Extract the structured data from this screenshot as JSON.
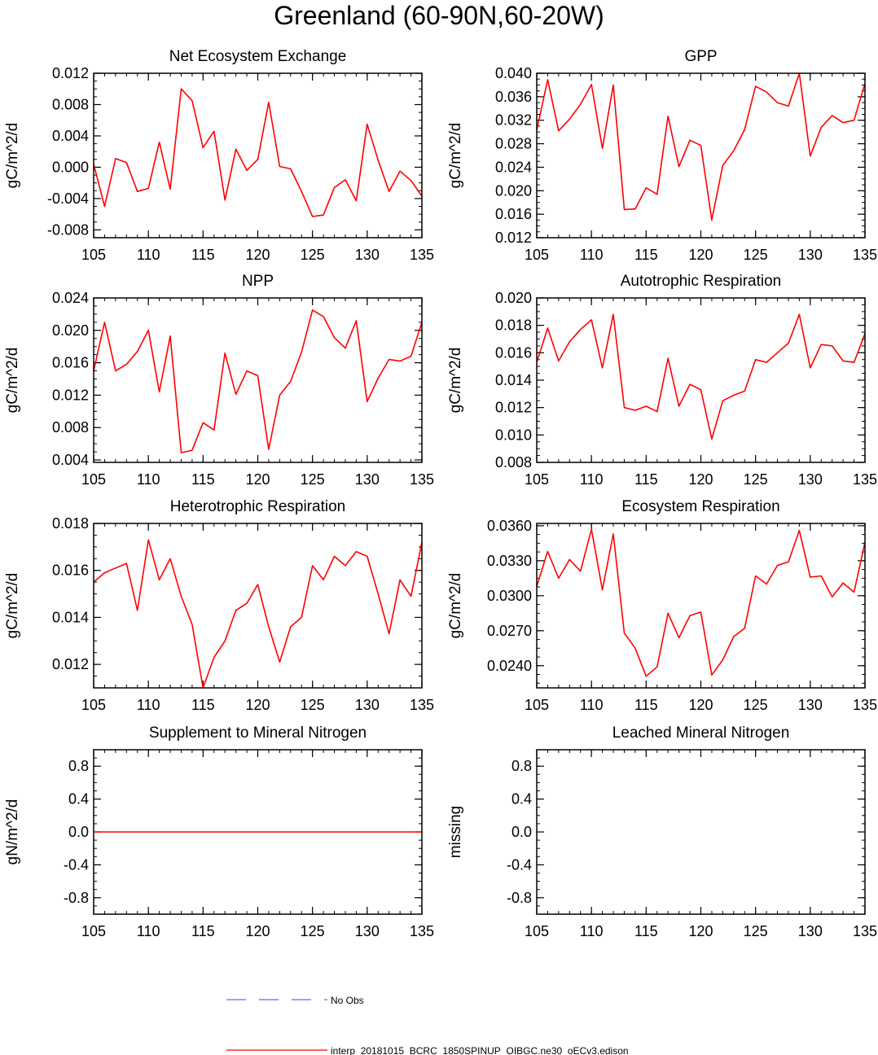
{
  "title": "Greenland (60-90N,60-20W)",
  "colors": {
    "model_line": "#ff0000",
    "obs_line": "#6666ff",
    "axis": "#000000"
  },
  "legend": {
    "items": [
      {
        "label": "No Obs",
        "style": "dashed",
        "color": "#6666ff"
      },
      {
        "label": "interp_20181015_BCRC_1850SPINUP_OIBGC.ne30_oECv3.edison",
        "style": "solid",
        "color": "#ff0000"
      }
    ]
  },
  "chart_data": [
    {
      "type": "line",
      "title": "Net Ecosystem Exchange",
      "ylabel": "gC/m^2/d",
      "xlim": [
        105,
        135
      ],
      "ylim": [
        -0.009,
        0.012
      ],
      "xticks": [
        "105",
        "110",
        "115",
        "120",
        "125",
        "130",
        "135"
      ],
      "yticks": [
        "-0.008",
        "-0.004",
        "0.000",
        "0.004",
        "0.008",
        "0.012"
      ],
      "x": [
        105,
        106,
        107,
        108,
        109,
        110,
        111,
        112,
        113,
        114,
        115,
        116,
        117,
        118,
        119,
        120,
        121,
        122,
        123,
        124,
        125,
        126,
        127,
        128,
        129,
        130,
        131,
        132,
        133,
        134,
        135
      ],
      "series": [
        {
          "values": [
            0.0004,
            -0.005,
            0.0011,
            0.0006,
            -0.0031,
            -0.0027,
            0.0032,
            -0.0028,
            0.01,
            0.0085,
            0.0025,
            0.0046,
            -0.0042,
            0.0023,
            -0.0004,
            0.001,
            0.0083,
            0.0001,
            -0.0002,
            -0.0031,
            -0.0063,
            -0.0061,
            -0.0026,
            -0.0016,
            -0.0043,
            0.0055,
            0.0009,
            -0.0031,
            -0.0005,
            -0.0017,
            -0.0037
          ]
        }
      ]
    },
    {
      "type": "line",
      "title": "GPP",
      "ylabel": "gC/m^2/d",
      "xlim": [
        105,
        135
      ],
      "ylim": [
        0.012,
        0.04
      ],
      "xticks": [
        "105",
        "110",
        "115",
        "120",
        "125",
        "130",
        "135"
      ],
      "yticks": [
        "0.012",
        "0.016",
        "0.020",
        "0.024",
        "0.028",
        "0.032",
        "0.036",
        "0.040"
      ],
      "x": [
        105,
        106,
        107,
        108,
        109,
        110,
        111,
        112,
        113,
        114,
        115,
        116,
        117,
        118,
        119,
        120,
        121,
        122,
        123,
        124,
        125,
        126,
        127,
        128,
        129,
        130,
        131,
        132,
        133,
        134,
        135
      ],
      "series": [
        {
          "values": [
            0.0303,
            0.0389,
            0.0302,
            0.0322,
            0.0347,
            0.0381,
            0.0272,
            0.038,
            0.0168,
            0.0169,
            0.0205,
            0.0194,
            0.0327,
            0.0241,
            0.0286,
            0.0277,
            0.015,
            0.0243,
            0.0268,
            0.0304,
            0.0378,
            0.0368,
            0.035,
            0.0344,
            0.04,
            0.0259,
            0.0308,
            0.0328,
            0.0316,
            0.032,
            0.0383
          ]
        }
      ]
    },
    {
      "type": "line",
      "title": "NPP",
      "ylabel": "gC/m^2/d",
      "xlim": [
        105,
        135
      ],
      "ylim": [
        0.0037,
        0.024
      ],
      "xticks": [
        "105",
        "110",
        "115",
        "120",
        "125",
        "130",
        "135"
      ],
      "yticks": [
        "0.004",
        "0.008",
        "0.012",
        "0.016",
        "0.020",
        "0.024"
      ],
      "x": [
        105,
        106,
        107,
        108,
        109,
        110,
        111,
        112,
        113,
        114,
        115,
        116,
        117,
        118,
        119,
        120,
        121,
        122,
        123,
        124,
        125,
        126,
        127,
        128,
        129,
        130,
        131,
        132,
        133,
        134,
        135
      ],
      "series": [
        {
          "values": [
            0.015,
            0.021,
            0.015,
            0.0158,
            0.0174,
            0.02,
            0.0124,
            0.0193,
            0.0049,
            0.0052,
            0.0086,
            0.0077,
            0.0172,
            0.0121,
            0.015,
            0.0144,
            0.0053,
            0.012,
            0.0137,
            0.0173,
            0.0225,
            0.0217,
            0.0191,
            0.0178,
            0.0212,
            0.0112,
            0.0141,
            0.0164,
            0.0162,
            0.0168,
            0.021
          ]
        }
      ]
    },
    {
      "type": "line",
      "title": "Autotrophic Respiration",
      "ylabel": "gC/m^2/d",
      "xlim": [
        105,
        135
      ],
      "ylim": [
        0.008,
        0.02
      ],
      "xticks": [
        "105",
        "110",
        "115",
        "120",
        "125",
        "130",
        "135"
      ],
      "yticks": [
        "0.008",
        "0.010",
        "0.012",
        "0.014",
        "0.016",
        "0.018",
        "0.020"
      ],
      "x": [
        105,
        106,
        107,
        108,
        109,
        110,
        111,
        112,
        113,
        114,
        115,
        116,
        117,
        118,
        119,
        120,
        121,
        122,
        123,
        124,
        125,
        126,
        127,
        128,
        129,
        130,
        131,
        132,
        133,
        134,
        135
      ],
      "series": [
        {
          "values": [
            0.0153,
            0.0178,
            0.0154,
            0.0168,
            0.0177,
            0.0184,
            0.0149,
            0.0188,
            0.012,
            0.0118,
            0.0121,
            0.0117,
            0.0156,
            0.0121,
            0.0137,
            0.0133,
            0.0097,
            0.0125,
            0.0129,
            0.0132,
            0.0155,
            0.0153,
            0.016,
            0.0167,
            0.0188,
            0.0149,
            0.0166,
            0.0165,
            0.0154,
            0.0153,
            0.0174
          ]
        }
      ]
    },
    {
      "type": "line",
      "title": "Heterotrophic Respiration",
      "ylabel": "gC/m^2/d",
      "xlim": [
        105,
        135
      ],
      "ylim": [
        0.011,
        0.018
      ],
      "xticks": [
        "105",
        "110",
        "115",
        "120",
        "125",
        "130",
        "135"
      ],
      "yticks": [
        "0.012",
        "0.014",
        "0.016",
        "0.018"
      ],
      "x": [
        105,
        106,
        107,
        108,
        109,
        110,
        111,
        112,
        113,
        114,
        115,
        116,
        117,
        118,
        119,
        120,
        121,
        122,
        123,
        124,
        125,
        126,
        127,
        128,
        129,
        130,
        131,
        132,
        133,
        134,
        135
      ],
      "series": [
        {
          "values": [
            0.0155,
            0.0159,
            0.0161,
            0.0163,
            0.0143,
            0.0173,
            0.0156,
            0.0165,
            0.0149,
            0.0137,
            0.011,
            0.0123,
            0.013,
            0.0143,
            0.0146,
            0.0154,
            0.0136,
            0.0121,
            0.0136,
            0.014,
            0.0162,
            0.0156,
            0.0166,
            0.0162,
            0.0168,
            0.0166,
            0.015,
            0.0133,
            0.0156,
            0.0149,
            0.0172
          ]
        }
      ]
    },
    {
      "type": "line",
      "title": "Ecosystem Respiration",
      "ylabel": "gC/m^2/d",
      "xlim": [
        105,
        135
      ],
      "ylim": [
        0.0221,
        0.0362
      ],
      "xticks": [
        "105",
        "110",
        "115",
        "120",
        "125",
        "130",
        "135"
      ],
      "yticks": [
        "0.0240",
        "0.0270",
        "0.0300",
        "0.0330",
        "0.0360"
      ],
      "x": [
        105,
        106,
        107,
        108,
        109,
        110,
        111,
        112,
        113,
        114,
        115,
        116,
        117,
        118,
        119,
        120,
        121,
        122,
        123,
        124,
        125,
        126,
        127,
        128,
        129,
        130,
        131,
        132,
        133,
        134,
        135
      ],
      "series": [
        {
          "values": [
            0.0308,
            0.0338,
            0.0315,
            0.0331,
            0.0321,
            0.0357,
            0.0305,
            0.0353,
            0.0268,
            0.0255,
            0.0231,
            0.0239,
            0.0285,
            0.0264,
            0.0283,
            0.0286,
            0.0232,
            0.0245,
            0.0265,
            0.0272,
            0.0317,
            0.031,
            0.0326,
            0.0329,
            0.0356,
            0.0316,
            0.0317,
            0.0299,
            0.0311,
            0.0303,
            0.0346
          ]
        }
      ]
    },
    {
      "type": "line",
      "title": "Supplement to Mineral Nitrogen",
      "ylabel": "gN/m^2/d",
      "xlim": [
        105,
        135
      ],
      "ylim": [
        -1.0,
        1.0
      ],
      "xticks": [
        "105",
        "110",
        "115",
        "120",
        "125",
        "130",
        "135"
      ],
      "yticks": [
        "-0.8",
        "-0.4",
        "0.0",
        "0.4",
        "0.8"
      ],
      "x": [
        105,
        106,
        107,
        108,
        109,
        110,
        111,
        112,
        113,
        114,
        115,
        116,
        117,
        118,
        119,
        120,
        121,
        122,
        123,
        124,
        125,
        126,
        127,
        128,
        129,
        130,
        131,
        132,
        133,
        134,
        135
      ],
      "series": [
        {
          "values": [
            0,
            0,
            0,
            0,
            0,
            0,
            0,
            0,
            0,
            0,
            0,
            0,
            0,
            0,
            0,
            0,
            0,
            0,
            0,
            0,
            0,
            0,
            0,
            0,
            0,
            0,
            0,
            0,
            0,
            0,
            0
          ]
        }
      ]
    },
    {
      "type": "line",
      "title": "Leached Mineral Nitrogen",
      "ylabel": "missing",
      "xlim": [
        105,
        135
      ],
      "ylim": [
        -1.0,
        1.0
      ],
      "xticks": [
        "105",
        "110",
        "115",
        "120",
        "125",
        "130",
        "135"
      ],
      "yticks": [
        "-0.8",
        "-0.4",
        "0.0",
        "0.4",
        "0.8"
      ],
      "x": [],
      "series": []
    }
  ]
}
